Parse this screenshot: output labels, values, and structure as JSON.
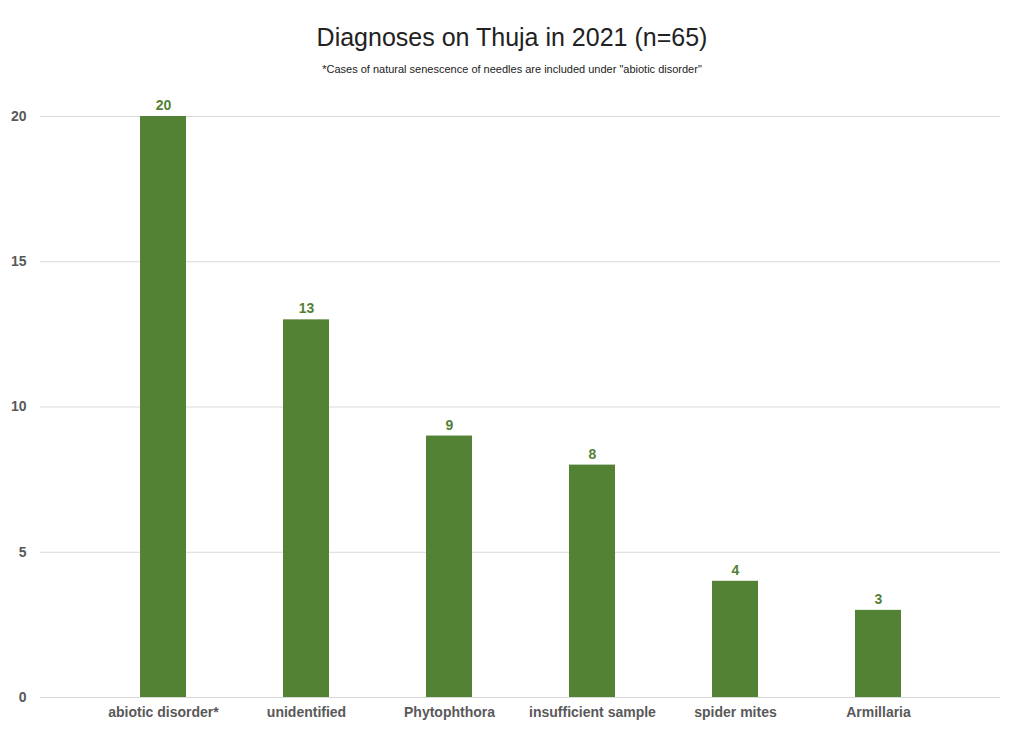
{
  "chart_data": {
    "type": "bar",
    "title": "Diagnoses on Thuja in 2021 (n=65)",
    "subtitle": "*Cases of natural senescence of needles are included under \"abiotic disorder\"",
    "categories": [
      "abiotic disorder*",
      "unidentified",
      "Phytophthora",
      "insufficient sample",
      "spider mites",
      "Armillaria"
    ],
    "values": [
      20,
      13,
      9,
      8,
      4,
      3
    ],
    "color": "#548235",
    "ylim": [
      0,
      20
    ],
    "yticks": [
      0,
      5,
      10,
      15,
      20
    ],
    "grid": true,
    "data_labels": true
  }
}
